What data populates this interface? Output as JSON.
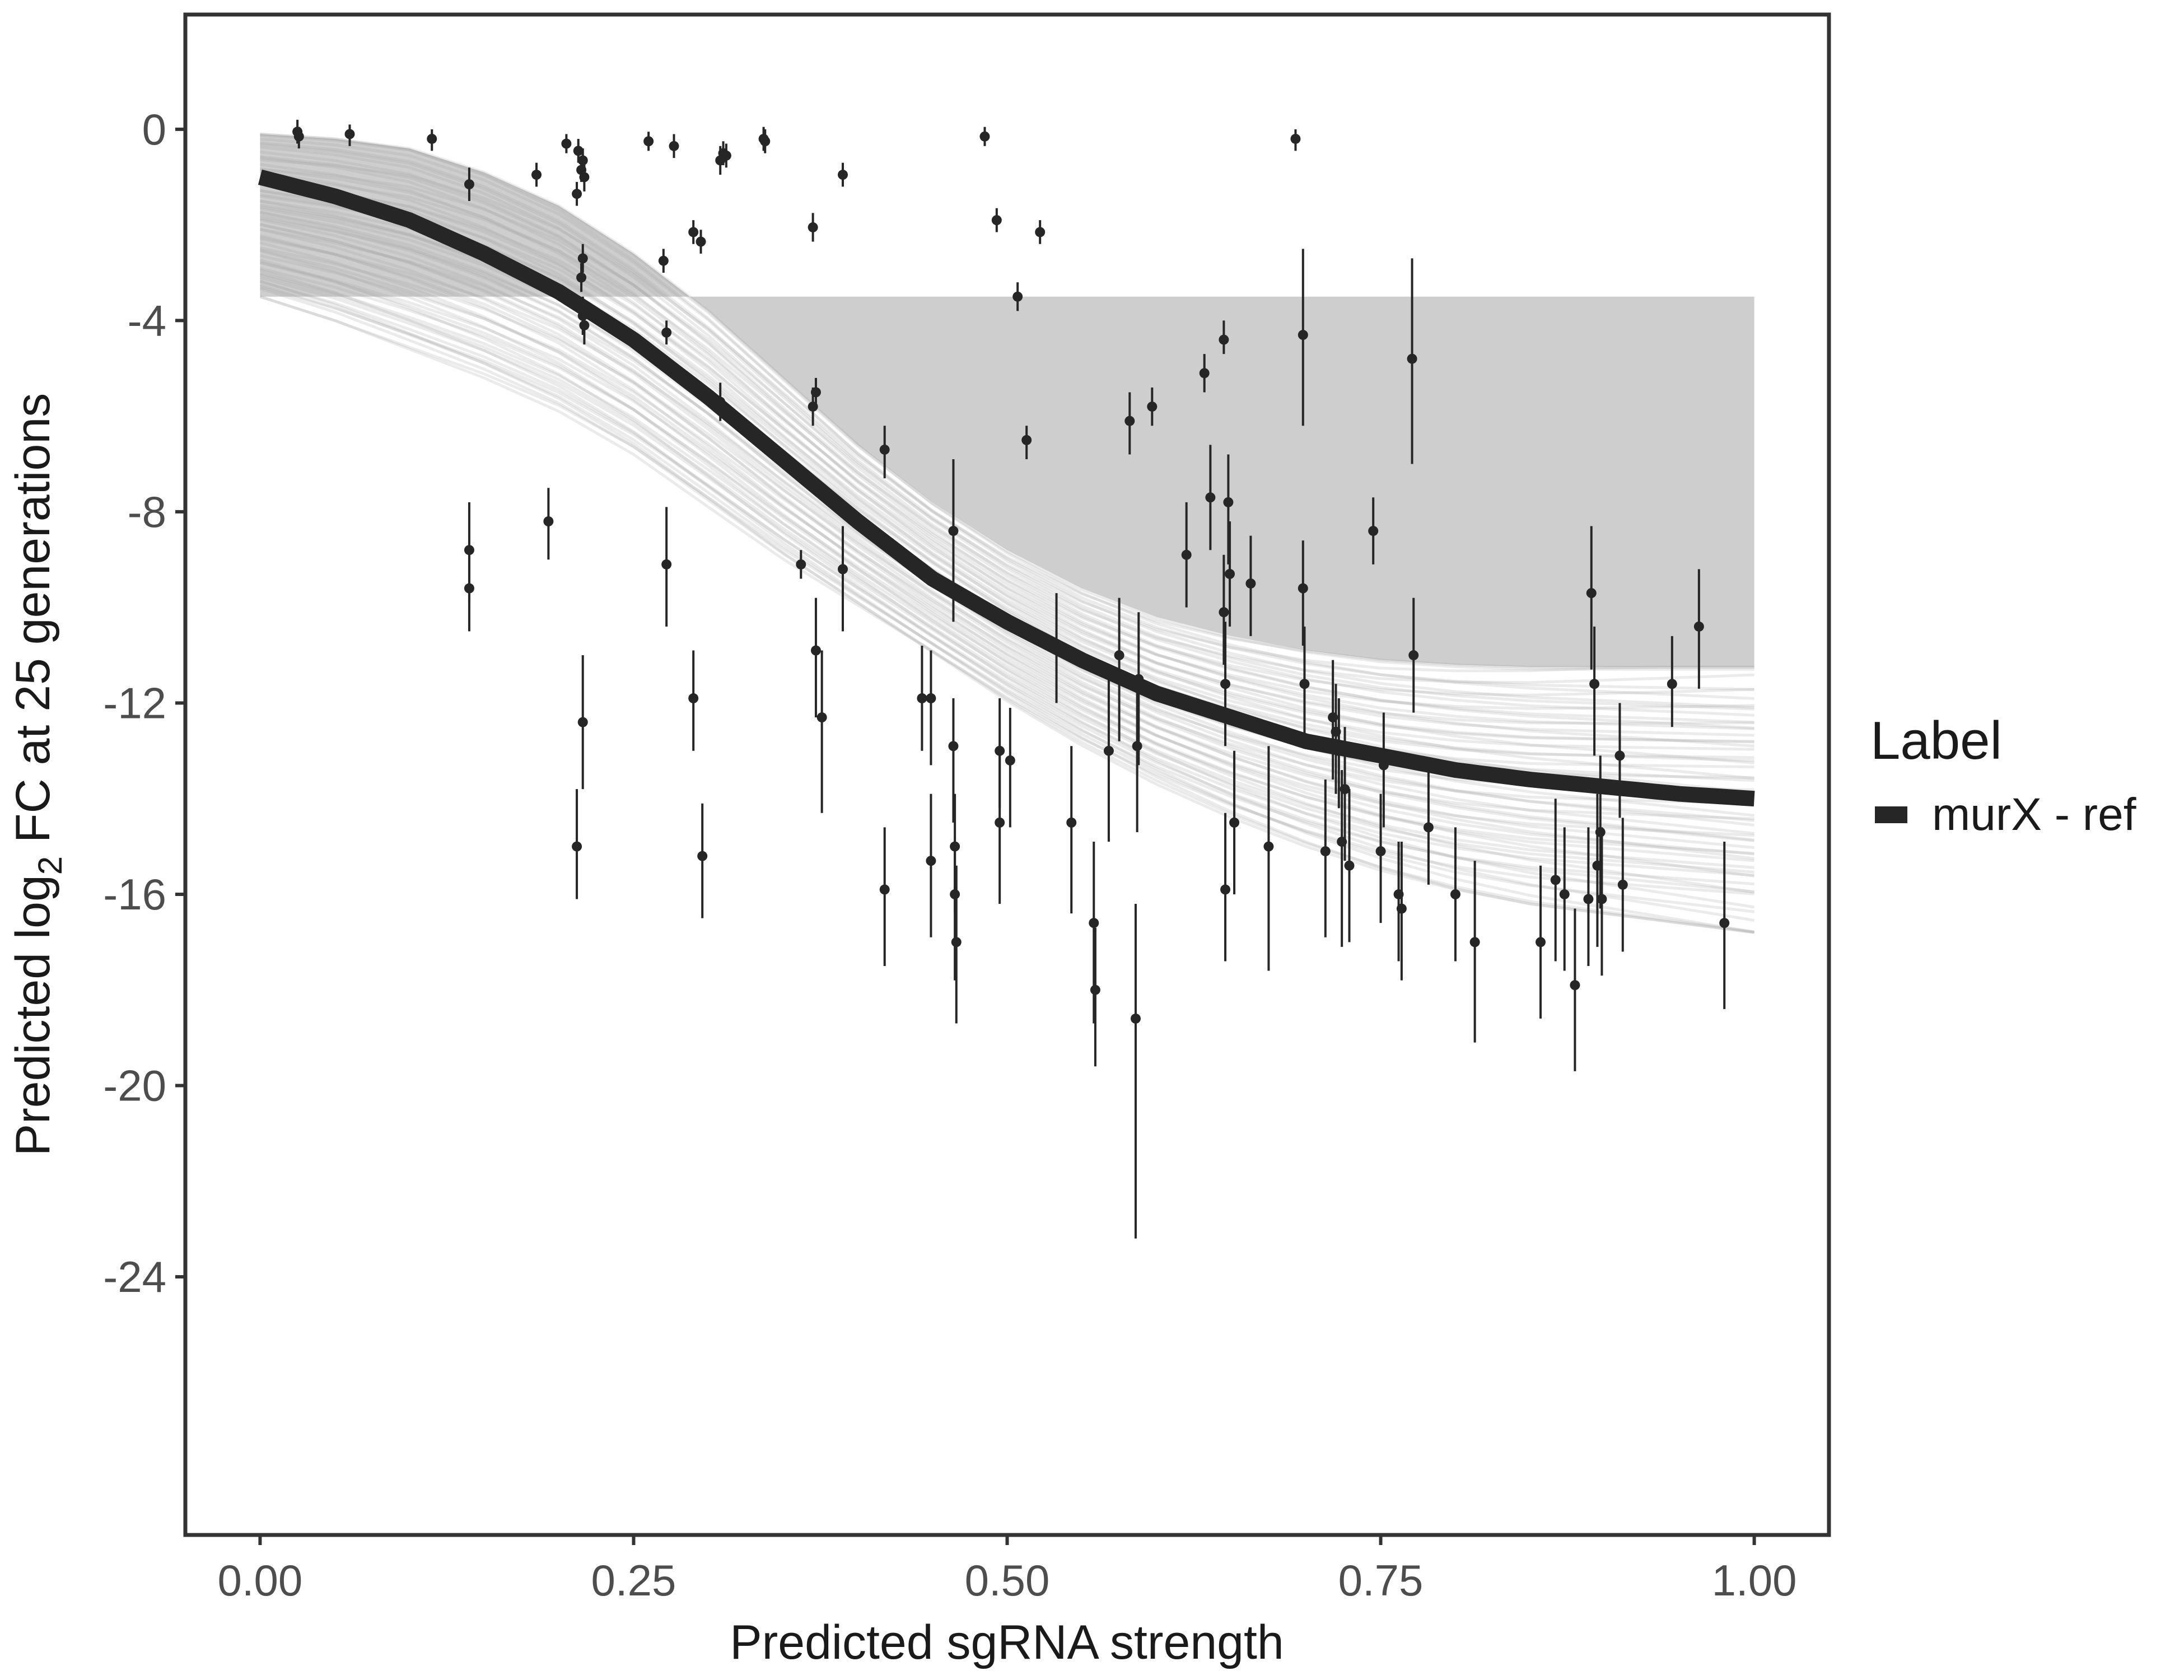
{
  "chart_data": {
    "type": "scatter",
    "title": "",
    "xlabel": "Predicted sgRNA strength",
    "ylabel_parts": {
      "pre": "Predicted  log",
      "sub": "2",
      "post": " FC at 25 generations"
    },
    "xlim": [
      -0.05,
      1.05
    ],
    "ylim": [
      -29.4,
      2.4
    ],
    "x_ticks": [
      0,
      0.25,
      0.5,
      0.75,
      1
    ],
    "x_tick_labels": [
      "0.00",
      "0.25",
      "0.50",
      "0.75",
      "1.00"
    ],
    "y_ticks": [
      0,
      -4,
      -8,
      -12,
      -16,
      -20,
      -24
    ],
    "y_tick_labels": [
      "0",
      "-4",
      "-8",
      "-12",
      "-16",
      "-20",
      "-24"
    ],
    "grid": false,
    "legend": {
      "title": "Label",
      "entries": [
        {
          "label": "murX - ref",
          "color": "#262626"
        }
      ],
      "position": "right"
    },
    "fit_line": {
      "name": "murX - ref",
      "color": "#262626",
      "x": [
        0,
        0.05,
        0.1,
        0.15,
        0.2,
        0.25,
        0.3,
        0.35,
        0.4,
        0.45,
        0.5,
        0.55,
        0.6,
        0.65,
        0.7,
        0.75,
        0.8,
        0.85,
        0.9,
        0.95,
        1.0
      ],
      "y": [
        -1.0,
        -1.4,
        -1.9,
        -2.6,
        -3.4,
        -4.4,
        -5.6,
        -6.9,
        -8.2,
        -9.4,
        -10.3,
        -11.1,
        -11.8,
        -12.3,
        -12.8,
        -13.1,
        -13.4,
        -13.6,
        -13.75,
        -13.9,
        -14.0
      ]
    },
    "ribbon": {
      "color": "#a6a6a6",
      "n_draws": 60,
      "x": [
        0,
        0.05,
        0.1,
        0.15,
        0.2,
        0.25,
        0.3,
        0.35,
        0.4,
        0.45,
        0.5,
        0.55,
        0.6,
        0.65,
        0.7,
        0.75,
        0.8,
        0.85,
        0.9,
        0.95,
        1.0
      ],
      "upper": [
        -0.1,
        -0.2,
        -0.4,
        -0.9,
        -1.6,
        -2.6,
        -3.8,
        -5.2,
        -6.6,
        -7.8,
        -8.8,
        -9.6,
        -10.2,
        -10.6,
        -10.9,
        -11.1,
        -11.2,
        -11.25,
        -11.25,
        -11.25,
        -11.25
      ],
      "lower": [
        -3.5,
        -4.0,
        -4.6,
        -5.2,
        -5.9,
        -6.8,
        -7.9,
        -9.0,
        -10.0,
        -11.0,
        -12.0,
        -12.9,
        -13.7,
        -14.4,
        -15.0,
        -15.5,
        -15.9,
        -16.2,
        -16.4,
        -16.6,
        -16.8
      ]
    },
    "points": [
      {
        "x": 0.025,
        "y": -0.05,
        "lo": -0.3,
        "hi": 0.2
      },
      {
        "x": 0.026,
        "y": -0.15,
        "lo": -0.4,
        "hi": 0.05
      },
      {
        "x": 0.06,
        "y": -0.1,
        "lo": -0.35,
        "hi": 0.1
      },
      {
        "x": 0.115,
        "y": -0.2,
        "lo": -0.45,
        "hi": 0.0
      },
      {
        "x": 0.14,
        "y": -1.15,
        "lo": -1.5,
        "hi": -0.8
      },
      {
        "x": 0.14,
        "y": -8.8,
        "lo": -9.9,
        "hi": -7.8
      },
      {
        "x": 0.14,
        "y": -9.6,
        "lo": -10.5,
        "hi": -8.8
      },
      {
        "x": 0.185,
        "y": -0.95,
        "lo": -1.2,
        "hi": -0.7
      },
      {
        "x": 0.193,
        "y": -8.2,
        "lo": -9.0,
        "hi": -7.5
      },
      {
        "x": 0.205,
        "y": -0.3,
        "lo": -0.5,
        "hi": -0.1
      },
      {
        "x": 0.212,
        "y": -1.35,
        "lo": -1.6,
        "hi": -1.1
      },
      {
        "x": 0.213,
        "y": -0.45,
        "lo": -0.7,
        "hi": -0.2
      },
      {
        "x": 0.215,
        "y": -0.85,
        "lo": -1.1,
        "hi": -0.6
      },
      {
        "x": 0.216,
        "y": -0.65,
        "lo": -0.9,
        "hi": -0.4
      },
      {
        "x": 0.217,
        "y": -1.0,
        "lo": -1.3,
        "hi": -0.7
      },
      {
        "x": 0.215,
        "y": -3.1,
        "lo": -3.4,
        "hi": -2.8
      },
      {
        "x": 0.216,
        "y": -2.7,
        "lo": -3.0,
        "hi": -2.4
      },
      {
        "x": 0.216,
        "y": -3.9,
        "lo": -4.3,
        "hi": -3.5
      },
      {
        "x": 0.217,
        "y": -4.1,
        "lo": -4.5,
        "hi": -3.7
      },
      {
        "x": 0.216,
        "y": -12.4,
        "lo": -13.8,
        "hi": -11.0
      },
      {
        "x": 0.212,
        "y": -15.0,
        "lo": -16.1,
        "hi": -13.8
      },
      {
        "x": 0.26,
        "y": -0.25,
        "lo": -0.45,
        "hi": -0.05
      },
      {
        "x": 0.27,
        "y": -2.75,
        "lo": -3.0,
        "hi": -2.5
      },
      {
        "x": 0.272,
        "y": -4.25,
        "lo": -4.5,
        "hi": -4.0
      },
      {
        "x": 0.272,
        "y": -9.1,
        "lo": -10.4,
        "hi": -7.9
      },
      {
        "x": 0.277,
        "y": -0.35,
        "lo": -0.6,
        "hi": -0.1
      },
      {
        "x": 0.29,
        "y": -2.15,
        "lo": -2.4,
        "hi": -1.9
      },
      {
        "x": 0.295,
        "y": -2.35,
        "lo": -2.6,
        "hi": -2.1
      },
      {
        "x": 0.29,
        "y": -11.9,
        "lo": -13.0,
        "hi": -10.9
      },
      {
        "x": 0.296,
        "y": -15.2,
        "lo": -16.5,
        "hi": -14.1
      },
      {
        "x": 0.308,
        "y": -0.65,
        "lo": -0.95,
        "hi": -0.35
      },
      {
        "x": 0.31,
        "y": -0.5,
        "lo": -0.75,
        "hi": -0.25
      },
      {
        "x": 0.312,
        "y": -0.55,
        "lo": -0.8,
        "hi": -0.3
      },
      {
        "x": 0.308,
        "y": -5.7,
        "lo": -6.1,
        "hi": -5.3
      },
      {
        "x": 0.337,
        "y": -0.2,
        "lo": -0.45,
        "hi": 0.05
      },
      {
        "x": 0.338,
        "y": -0.25,
        "lo": -0.5,
        "hi": 0.0
      },
      {
        "x": 0.362,
        "y": -9.1,
        "lo": -9.4,
        "hi": -8.8
      },
      {
        "x": 0.37,
        "y": -2.05,
        "lo": -2.35,
        "hi": -1.75
      },
      {
        "x": 0.37,
        "y": -5.8,
        "lo": -6.2,
        "hi": -5.4
      },
      {
        "x": 0.372,
        "y": -5.5,
        "lo": -5.8,
        "hi": -5.2
      },
      {
        "x": 0.372,
        "y": -10.9,
        "lo": -12.3,
        "hi": -9.8
      },
      {
        "x": 0.376,
        "y": -12.3,
        "lo": -14.3,
        "hi": -10.9
      },
      {
        "x": 0.39,
        "y": -0.95,
        "lo": -1.2,
        "hi": -0.7
      },
      {
        "x": 0.39,
        "y": -9.2,
        "lo": -10.5,
        "hi": -8.3
      },
      {
        "x": 0.418,
        "y": -6.7,
        "lo": -7.3,
        "hi": -6.2
      },
      {
        "x": 0.418,
        "y": -15.9,
        "lo": -17.5,
        "hi": -14.6
      },
      {
        "x": 0.443,
        "y": -11.9,
        "lo": -13.0,
        "hi": -10.8
      },
      {
        "x": 0.449,
        "y": -11.9,
        "lo": -13.3,
        "hi": -10.9
      },
      {
        "x": 0.449,
        "y": -15.3,
        "lo": -16.9,
        "hi": -13.9
      },
      {
        "x": 0.464,
        "y": -8.4,
        "lo": -10.3,
        "hi": -6.9
      },
      {
        "x": 0.464,
        "y": -12.9,
        "lo": -14.5,
        "hi": -11.9
      },
      {
        "x": 0.465,
        "y": -15.0,
        "lo": -16.4,
        "hi": -13.9
      },
      {
        "x": 0.465,
        "y": -16.0,
        "lo": -17.8,
        "hi": -14.9
      },
      {
        "x": 0.466,
        "y": -17.0,
        "lo": -18.7,
        "hi": -15.4
      },
      {
        "x": 0.485,
        "y": -0.15,
        "lo": -0.35,
        "hi": 0.05
      },
      {
        "x": 0.493,
        "y": -1.9,
        "lo": -2.15,
        "hi": -1.65
      },
      {
        "x": 0.495,
        "y": -13.0,
        "lo": -14.2,
        "hi": -11.9
      },
      {
        "x": 0.495,
        "y": -14.5,
        "lo": -16.2,
        "hi": -13.1
      },
      {
        "x": 0.502,
        "y": -13.2,
        "lo": -14.6,
        "hi": -12.1
      },
      {
        "x": 0.507,
        "y": -3.5,
        "lo": -3.8,
        "hi": -3.2
      },
      {
        "x": 0.513,
        "y": -6.5,
        "lo": -6.9,
        "hi": -6.2
      },
      {
        "x": 0.522,
        "y": -2.15,
        "lo": -2.4,
        "hi": -1.9
      },
      {
        "x": 0.533,
        "y": -10.8,
        "lo": -12.0,
        "hi": -9.7
      },
      {
        "x": 0.543,
        "y": -14.5,
        "lo": -16.4,
        "hi": -12.9
      },
      {
        "x": 0.558,
        "y": -16.6,
        "lo": -18.7,
        "hi": -14.9
      },
      {
        "x": 0.559,
        "y": -18.0,
        "lo": -19.6,
        "hi": -16.7
      },
      {
        "x": 0.568,
        "y": -13.0,
        "lo": -14.9,
        "hi": -11.5
      },
      {
        "x": 0.575,
        "y": -11.0,
        "lo": -12.8,
        "hi": -9.8
      },
      {
        "x": 0.582,
        "y": -6.1,
        "lo": -6.8,
        "hi": -5.5
      },
      {
        "x": 0.586,
        "y": -18.6,
        "lo": -23.2,
        "hi": -16.2
      },
      {
        "x": 0.587,
        "y": -12.9,
        "lo": -14.7,
        "hi": -11.5
      },
      {
        "x": 0.588,
        "y": -11.5,
        "lo": -13.3,
        "hi": -10.1
      },
      {
        "x": 0.597,
        "y": -5.8,
        "lo": -6.2,
        "hi": -5.4
      },
      {
        "x": 0.62,
        "y": -8.9,
        "lo": -10.0,
        "hi": -7.8
      },
      {
        "x": 0.632,
        "y": -5.1,
        "lo": -5.5,
        "hi": -4.7
      },
      {
        "x": 0.636,
        "y": -7.7,
        "lo": -8.8,
        "hi": -6.6
      },
      {
        "x": 0.645,
        "y": -4.4,
        "lo": -4.7,
        "hi": -4.0
      },
      {
        "x": 0.645,
        "y": -10.1,
        "lo": -11.2,
        "hi": -8.9
      },
      {
        "x": 0.646,
        "y": -11.6,
        "lo": -12.9,
        "hi": -10.3
      },
      {
        "x": 0.646,
        "y": -15.9,
        "lo": -17.4,
        "hi": -14.3
      },
      {
        "x": 0.648,
        "y": -7.8,
        "lo": -9.1,
        "hi": -6.8
      },
      {
        "x": 0.649,
        "y": -9.3,
        "lo": -10.4,
        "hi": -8.2
      },
      {
        "x": 0.652,
        "y": -14.5,
        "lo": -16.0,
        "hi": -13.0
      },
      {
        "x": 0.663,
        "y": -9.5,
        "lo": -10.6,
        "hi": -8.5
      },
      {
        "x": 0.675,
        "y": -15.0,
        "lo": -17.6,
        "hi": -12.9
      },
      {
        "x": 0.693,
        "y": -0.2,
        "lo": -0.45,
        "hi": 0.0
      },
      {
        "x": 0.698,
        "y": -4.3,
        "lo": -6.2,
        "hi": -2.5
      },
      {
        "x": 0.698,
        "y": -9.6,
        "lo": -10.8,
        "hi": -8.6
      },
      {
        "x": 0.699,
        "y": -11.6,
        "lo": -12.9,
        "hi": -10.4
      },
      {
        "x": 0.713,
        "y": -15.1,
        "lo": -16.9,
        "hi": -13.6
      },
      {
        "x": 0.718,
        "y": -12.3,
        "lo": -13.6,
        "hi": -11.1
      },
      {
        "x": 0.72,
        "y": -12.6,
        "lo": -13.9,
        "hi": -11.6
      },
      {
        "x": 0.722,
        "y": -13.0,
        "lo": -14.2,
        "hi": -11.9
      },
      {
        "x": 0.724,
        "y": -14.9,
        "lo": -17.1,
        "hi": -13.4
      },
      {
        "x": 0.726,
        "y": -13.8,
        "lo": -15.3,
        "hi": -12.5
      },
      {
        "x": 0.729,
        "y": -15.4,
        "lo": -17.0,
        "hi": -13.8
      },
      {
        "x": 0.745,
        "y": -8.4,
        "lo": -9.1,
        "hi": -7.7
      },
      {
        "x": 0.75,
        "y": -15.1,
        "lo": -16.6,
        "hi": -13.9
      },
      {
        "x": 0.752,
        "y": -13.3,
        "lo": -14.6,
        "hi": -12.2
      },
      {
        "x": 0.762,
        "y": -16.0,
        "lo": -17.4,
        "hi": -14.9
      },
      {
        "x": 0.764,
        "y": -16.3,
        "lo": -17.8,
        "hi": -14.9
      },
      {
        "x": 0.771,
        "y": -4.8,
        "lo": -7.0,
        "hi": -2.7
      },
      {
        "x": 0.772,
        "y": -11.0,
        "lo": -12.2,
        "hi": -9.8
      },
      {
        "x": 0.782,
        "y": -14.6,
        "lo": -15.8,
        "hi": -13.3
      },
      {
        "x": 0.8,
        "y": -16.0,
        "lo": -17.4,
        "hi": -14.6
      },
      {
        "x": 0.813,
        "y": -17.0,
        "lo": -19.1,
        "hi": -15.3
      },
      {
        "x": 0.857,
        "y": -17.0,
        "lo": -18.6,
        "hi": -15.4
      },
      {
        "x": 0.867,
        "y": -15.7,
        "lo": -17.4,
        "hi": -14.0
      },
      {
        "x": 0.873,
        "y": -16.0,
        "lo": -17.6,
        "hi": -14.6
      },
      {
        "x": 0.88,
        "y": -17.9,
        "lo": -19.7,
        "hi": -16.3
      },
      {
        "x": 0.889,
        "y": -16.1,
        "lo": -17.5,
        "hi": -14.6
      },
      {
        "x": 0.891,
        "y": -9.7,
        "lo": -11.3,
        "hi": -8.3
      },
      {
        "x": 0.893,
        "y": -11.6,
        "lo": -13.1,
        "hi": -10.4
      },
      {
        "x": 0.895,
        "y": -15.4,
        "lo": -17.1,
        "hi": -13.9
      },
      {
        "x": 0.897,
        "y": -14.7,
        "lo": -16.3,
        "hi": -13.1
      },
      {
        "x": 0.898,
        "y": -16.1,
        "lo": -17.7,
        "hi": -14.6
      },
      {
        "x": 0.91,
        "y": -13.1,
        "lo": -14.4,
        "hi": -12.0
      },
      {
        "x": 0.912,
        "y": -15.8,
        "lo": -17.2,
        "hi": -14.4
      },
      {
        "x": 0.945,
        "y": -11.6,
        "lo": -12.5,
        "hi": -10.6
      },
      {
        "x": 0.963,
        "y": -10.4,
        "lo": -11.7,
        "hi": -9.2
      },
      {
        "x": 0.98,
        "y": -16.6,
        "lo": -18.4,
        "hi": -14.9
      }
    ]
  }
}
